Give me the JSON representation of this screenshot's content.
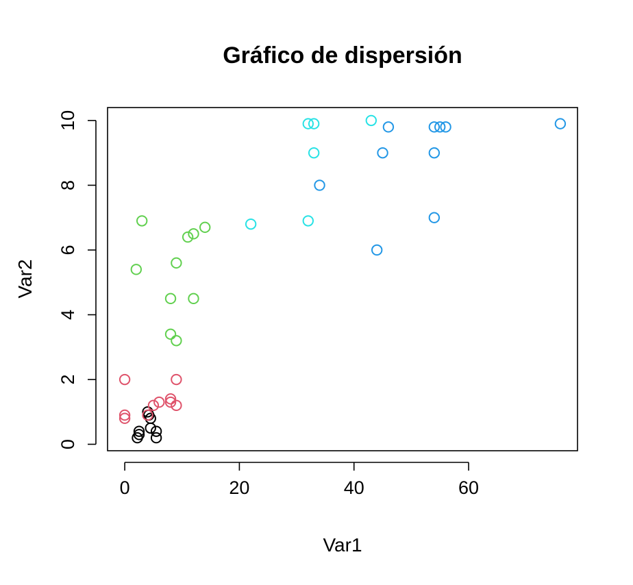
{
  "chart_data": {
    "type": "scatter",
    "title": "Gráfico de dispersión",
    "xlabel": "Var1",
    "ylabel": "Var2",
    "xlim": [
      -3,
      79
    ],
    "ylim": [
      -0.2,
      10.4
    ],
    "xticks": [
      0,
      20,
      40,
      60
    ],
    "yticks": [
      0,
      2,
      4,
      6,
      8,
      10
    ],
    "grid": false,
    "marker": "open-circle",
    "series": [
      {
        "color": "#000000",
        "points": [
          [
            2.2,
            0.2
          ],
          [
            2.5,
            0.3
          ],
          [
            2.5,
            0.4
          ],
          [
            4,
            1.0
          ],
          [
            4.2,
            0.9
          ],
          [
            4.5,
            0.8
          ],
          [
            4.5,
            0.5
          ],
          [
            5.5,
            0.4
          ],
          [
            5.5,
            0.2
          ]
        ]
      },
      {
        "color": "#DF536B",
        "points": [
          [
            0,
            2.0
          ],
          [
            0,
            0.9
          ],
          [
            0,
            0.8
          ],
          [
            4,
            0.9
          ],
          [
            5,
            1.2
          ],
          [
            6,
            1.3
          ],
          [
            8,
            1.4
          ],
          [
            8,
            1.3
          ],
          [
            9,
            2.0
          ],
          [
            9,
            1.2
          ]
        ]
      },
      {
        "color": "#61D04F",
        "points": [
          [
            2,
            5.4
          ],
          [
            3,
            6.9
          ],
          [
            8,
            4.5
          ],
          [
            8,
            3.4
          ],
          [
            9,
            5.6
          ],
          [
            9,
            3.2
          ],
          [
            11,
            6.4
          ],
          [
            12,
            6.5
          ],
          [
            12,
            4.5
          ],
          [
            14,
            6.7
          ]
        ]
      },
      {
        "color": "#28E2E5",
        "points": [
          [
            22,
            6.8
          ],
          [
            32,
            9.9
          ],
          [
            32,
            6.9
          ],
          [
            33,
            9.9
          ],
          [
            33,
            9.0
          ],
          [
            43,
            10.0
          ]
        ]
      },
      {
        "color": "#2297E6",
        "points": [
          [
            34,
            8.0
          ],
          [
            44,
            6.0
          ],
          [
            45,
            9.0
          ],
          [
            46,
            9.8
          ],
          [
            54,
            9.8
          ],
          [
            54,
            9.0
          ],
          [
            54,
            7.0
          ],
          [
            55,
            9.8
          ],
          [
            56,
            9.8
          ],
          [
            76,
            9.9
          ]
        ]
      }
    ]
  }
}
